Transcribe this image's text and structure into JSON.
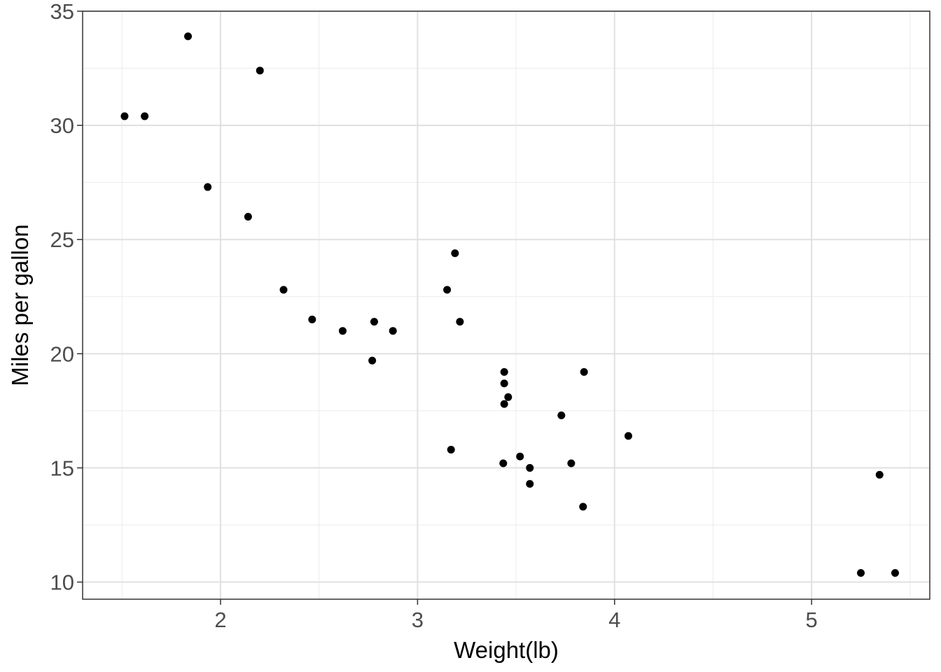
{
  "chart_data": {
    "type": "scatter",
    "xlabel": "Weight(lb)",
    "ylabel": "Miles per gallon",
    "xlim": [
      1.3,
      5.6
    ],
    "ylim": [
      9.25,
      35.0
    ],
    "x_ticks": [
      2,
      3,
      4,
      5
    ],
    "y_ticks": [
      10,
      15,
      20,
      25,
      30,
      35
    ],
    "x_tick_labels": [
      "2",
      "3",
      "4",
      "5"
    ],
    "y_tick_labels": [
      "10",
      "15",
      "20",
      "25",
      "30",
      "35"
    ],
    "grid": true,
    "legend": "none",
    "point_color": "#000000",
    "points": [
      {
        "x": 2.62,
        "y": 21.0
      },
      {
        "x": 2.875,
        "y": 21.0
      },
      {
        "x": 2.32,
        "y": 22.8
      },
      {
        "x": 3.215,
        "y": 21.4
      },
      {
        "x": 3.44,
        "y": 18.7
      },
      {
        "x": 3.46,
        "y": 18.1
      },
      {
        "x": 3.57,
        "y": 14.3
      },
      {
        "x": 3.19,
        "y": 24.4
      },
      {
        "x": 3.15,
        "y": 22.8
      },
      {
        "x": 3.44,
        "y": 19.2
      },
      {
        "x": 3.44,
        "y": 17.8
      },
      {
        "x": 4.07,
        "y": 16.4
      },
      {
        "x": 3.73,
        "y": 17.3
      },
      {
        "x": 3.78,
        "y": 15.2
      },
      {
        "x": 5.25,
        "y": 10.4
      },
      {
        "x": 5.424,
        "y": 10.4
      },
      {
        "x": 5.345,
        "y": 14.7
      },
      {
        "x": 2.2,
        "y": 32.4
      },
      {
        "x": 1.615,
        "y": 30.4
      },
      {
        "x": 1.835,
        "y": 33.9
      },
      {
        "x": 2.465,
        "y": 21.5
      },
      {
        "x": 3.52,
        "y": 15.5
      },
      {
        "x": 3.435,
        "y": 15.2
      },
      {
        "x": 3.84,
        "y": 13.3
      },
      {
        "x": 3.845,
        "y": 19.2
      },
      {
        "x": 1.935,
        "y": 27.3
      },
      {
        "x": 2.14,
        "y": 26.0
      },
      {
        "x": 1.513,
        "y": 30.4
      },
      {
        "x": 3.17,
        "y": 15.8
      },
      {
        "x": 2.77,
        "y": 19.7
      },
      {
        "x": 3.57,
        "y": 15.0
      },
      {
        "x": 2.78,
        "y": 21.4
      }
    ]
  }
}
